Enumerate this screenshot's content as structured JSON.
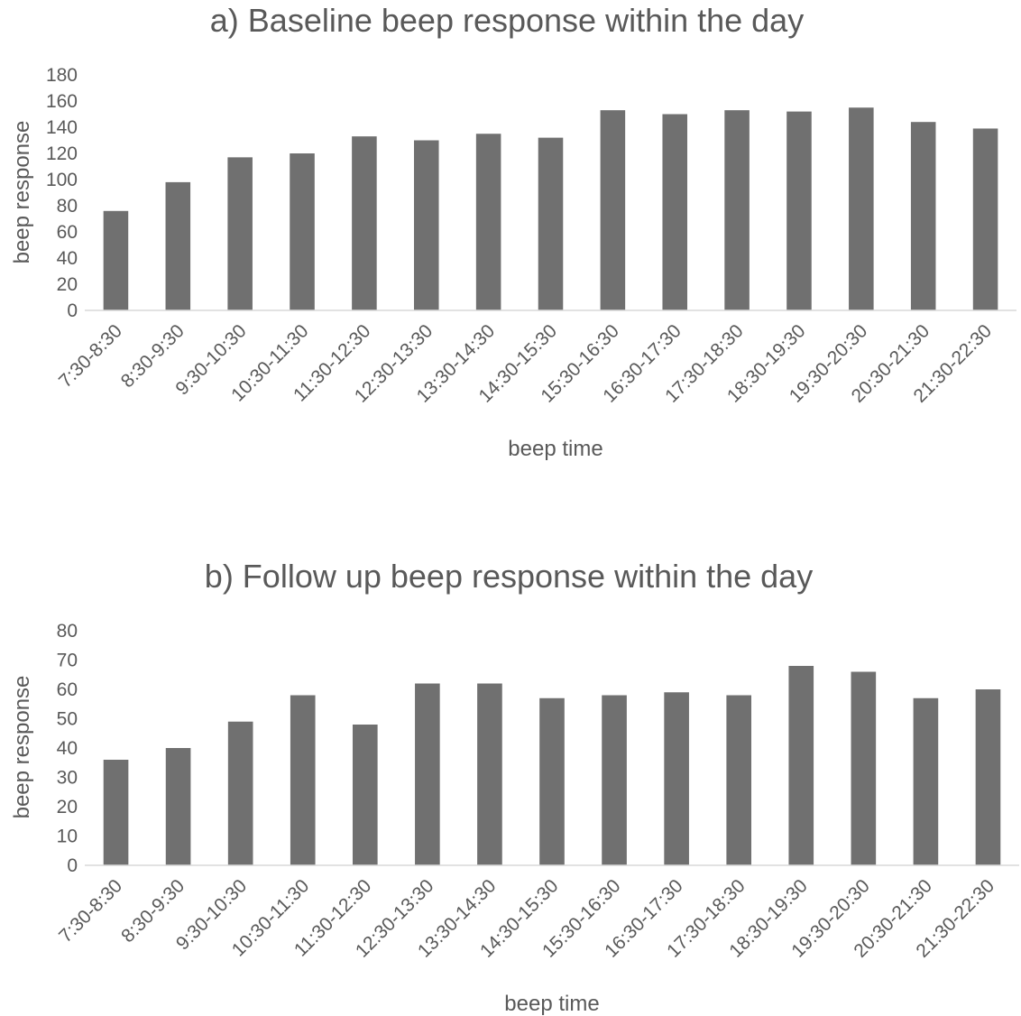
{
  "chart_data": [
    {
      "type": "bar",
      "title": "a) Baseline beep response within the day",
      "xlabel": "beep time",
      "ylabel": "beep response",
      "ylim": [
        0,
        180
      ],
      "ytick_step": 20,
      "grid": false,
      "legend": "none",
      "bar_color": "#707070",
      "categories": [
        "7:30-8:30",
        "8:30-9:30",
        "9:30-10:30",
        "10:30-11:30",
        "11:30-12:30",
        "12:30-13:30",
        "13:30-14:30",
        "14:30-15:30",
        "15:30-16:30",
        "16:30-17:30",
        "17:30-18:30",
        "18:30-19:30",
        "19:30-20:30",
        "20:30-21:30",
        "21:30-22:30"
      ],
      "values": [
        76,
        98,
        117,
        120,
        133,
        130,
        135,
        132,
        153,
        150,
        153,
        152,
        155,
        144,
        139
      ]
    },
    {
      "type": "bar",
      "title": "b) Follow up beep response within the day",
      "xlabel": "beep time",
      "ylabel": "beep response",
      "ylim": [
        0,
        80
      ],
      "ytick_step": 10,
      "grid": false,
      "legend": "none",
      "bar_color": "#707070",
      "categories": [
        "7:30-8:30",
        "8:30-9:30",
        "9:30-10:30",
        "10:30-11:30",
        "11:30-12:30",
        "12:30-13:30",
        "13:30-14:30",
        "14:30-15:30",
        "15:30-16:30",
        "16:30-17:30",
        "17:30-18:30",
        "18:30-19:30",
        "19:30-20:30",
        "20:30-21:30",
        "21:30-22:30"
      ],
      "values": [
        36,
        40,
        49,
        58,
        48,
        62,
        62,
        57,
        58,
        59,
        58,
        68,
        66,
        57,
        60
      ]
    }
  ]
}
